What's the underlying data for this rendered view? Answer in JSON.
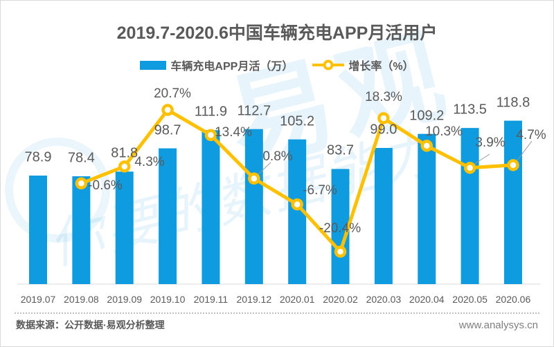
{
  "page": {
    "title": "2019.7-2020.6中国车辆充电APP月活用户",
    "source_note": "数据来源：公开数据·易观分析整理",
    "website": "www.analysys.cn",
    "watermark": {
      "logo_text": "易观",
      "slogan": "你要的数据能力"
    }
  },
  "legend": [
    {
      "label": "车辆充电APP月活（万）",
      "swatch": "bar",
      "color": "#0f9be0"
    },
    {
      "label": "增长率（%）",
      "swatch": "line-marker",
      "color": "#ffc000"
    }
  ],
  "chart_data": {
    "type": "bar+line",
    "title": "2019.7-2020.6中国车辆充电APP月活用户",
    "categories": [
      "2019.07",
      "2019.08",
      "2019.09",
      "2019.10",
      "2019.11",
      "2019.12",
      "2020.01",
      "2020.02",
      "2020.03",
      "2020.04",
      "2020.05",
      "2020.06"
    ],
    "series": [
      {
        "name": "车辆充电APP月活（万）",
        "type": "bar",
        "color": "#0f9be0",
        "values": [
          78.9,
          78.4,
          81.8,
          98.7,
          111.9,
          112.7,
          105.2,
          83.7,
          99.0,
          109.2,
          113.5,
          118.8
        ],
        "value_labels": [
          "78.9",
          "78.4",
          "81.8",
          "98.7",
          "111.9",
          "112.7",
          "105.2",
          "83.7",
          "99.0",
          "109.2",
          "113.5",
          "118.8"
        ]
      },
      {
        "name": "增长率（%）",
        "type": "line",
        "color": "#ffc000",
        "marker": "circle-white-fill",
        "values": [
          null,
          -0.6,
          4.3,
          20.7,
          13.4,
          0.8,
          -6.7,
          -20.4,
          18.3,
          10.3,
          3.9,
          4.7
        ],
        "value_labels": [
          "",
          "-0.6%",
          "4.3%",
          "20.7%",
          "13.4%",
          "0.8%",
          "-6.7%",
          "-20.4%",
          "18.3%",
          "10.3%",
          "3.9%",
          "4.7%"
        ]
      }
    ],
    "label_color": "#595959",
    "axis_line_color": "#d9d9d9",
    "leader_line_color": "#999999",
    "value_axis_visible": false,
    "grid": "off",
    "legend_position": "top-center",
    "ylim_bar": [
      0,
      140
    ],
    "ylim_line_pct": [
      -30,
      30
    ]
  }
}
